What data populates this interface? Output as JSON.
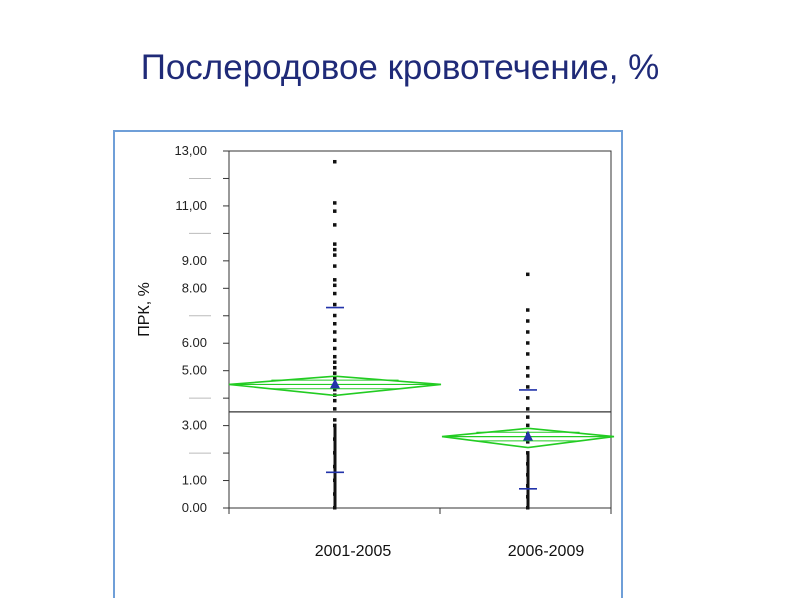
{
  "title": "Послеродовое кровотечение, %",
  "chart_data": {
    "type": "scatter",
    "ylabel": "ПРК, %",
    "xlabel": "",
    "ylim": [
      0,
      13
    ],
    "yticks": [
      {
        "value": 0,
        "label": "0.00"
      },
      {
        "value": 1,
        "label": "1.00"
      },
      {
        "value": 3,
        "label": "3.00"
      },
      {
        "value": 5,
        "label": "5.00"
      },
      {
        "value": 6,
        "label": "6.00"
      },
      {
        "value": 8,
        "label": "8.00"
      },
      {
        "value": 9,
        "label": "9.00"
      },
      {
        "value": 11,
        "label": "11,00"
      },
      {
        "value": 13,
        "label": "13,00"
      }
    ],
    "yminor": [
      2,
      4,
      7,
      10,
      12
    ],
    "categories": [
      "2001-2005",
      "2006-2009"
    ],
    "grand_mean": 3.5,
    "groups": [
      {
        "category": "2001-2005",
        "mean": 4.5,
        "ci_lower": 4.1,
        "ci_upper": 4.8,
        "sd_lower": 1.3,
        "sd_upper": 7.3,
        "points": [
          0,
          0.5,
          1,
          1.5,
          2,
          2.5,
          3,
          3.2,
          3.6,
          3.9,
          4.1,
          4.3,
          4.5,
          4.7,
          4.9,
          5.1,
          5.3,
          5.5,
          5.8,
          6.1,
          6.4,
          6.7,
          7.0,
          7.4,
          7.8,
          8.1,
          8.3,
          8.8,
          9.2,
          9.4,
          9.6,
          10.3,
          10.8,
          11.1,
          12.6
        ]
      },
      {
        "category": "2006-2009",
        "mean": 2.6,
        "ci_lower": 2.2,
        "ci_upper": 2.9,
        "sd_lower": 0.7,
        "sd_upper": 4.3,
        "points": [
          0,
          0.4,
          0.8,
          1.2,
          1.6,
          2.0,
          2.4,
          2.7,
          3.0,
          3.3,
          3.6,
          4.0,
          4.4,
          4.8,
          5.1,
          5.6,
          6.0,
          6.4,
          6.8,
          7.2,
          8.5
        ]
      }
    ]
  }
}
